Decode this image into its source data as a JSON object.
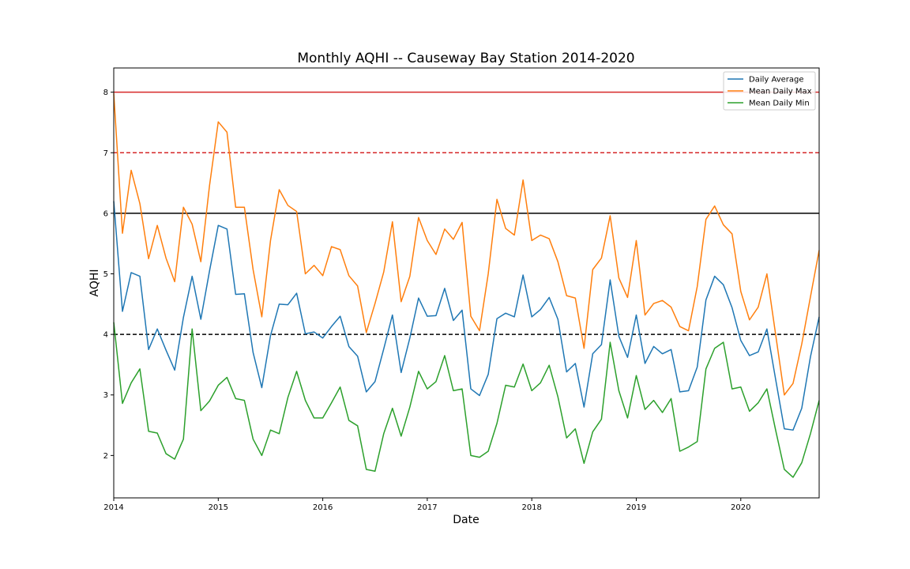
{
  "chart_data": {
    "type": "line",
    "title": "Monthly AQHI -- Causeway Bay Station 2014-2020",
    "xlabel": "Date",
    "ylabel": "AQHI",
    "x_start": "2014-01",
    "x_end": "2020-10",
    "xlim": [
      "2014-01",
      "2020-10"
    ],
    "ylim": [
      1.3,
      8.4
    ],
    "x_ticks": [
      "2014",
      "2015",
      "2016",
      "2017",
      "2018",
      "2019",
      "2020"
    ],
    "y_ticks": [
      2,
      3,
      4,
      5,
      6,
      7,
      8
    ],
    "grid": false,
    "legend_position": "upper right",
    "reference_lines": [
      {
        "y": 8,
        "style": "solid",
        "color": "#d62728"
      },
      {
        "y": 7,
        "style": "dashed",
        "color": "#d62728"
      },
      {
        "y": 6,
        "style": "solid",
        "color": "#000000"
      },
      {
        "y": 4,
        "style": "dashed",
        "color": "#000000"
      }
    ],
    "series": [
      {
        "name": "Daily Average",
        "color": "#1f77b4",
        "values": [
          6.2,
          4.38,
          5.02,
          4.96,
          3.75,
          4.09,
          3.74,
          3.41,
          4.28,
          4.96,
          4.25,
          5.05,
          5.8,
          5.74,
          4.66,
          4.67,
          3.7,
          3.12,
          3.98,
          4.5,
          4.49,
          4.68,
          4.01,
          4.04,
          3.94,
          4.13,
          4.3,
          3.8,
          3.64,
          3.05,
          3.22,
          3.76,
          4.32,
          3.37,
          3.94,
          4.6,
          4.3,
          4.31,
          4.76,
          4.23,
          4.4,
          3.1,
          2.99,
          3.34,
          4.26,
          4.35,
          4.29,
          4.98,
          4.29,
          4.41,
          4.61,
          4.25,
          3.38,
          3.52,
          2.8,
          3.68,
          3.83,
          4.9,
          3.97,
          3.62,
          4.32,
          3.52,
          3.8,
          3.68,
          3.75,
          3.05,
          3.07,
          3.46,
          4.57,
          4.96,
          4.82,
          4.44,
          3.9,
          3.65,
          3.71,
          4.09,
          3.26,
          2.44,
          2.42,
          2.78,
          3.63,
          4.29
        ]
      },
      {
        "name": "Mean Daily Max",
        "color": "#ff7f0e",
        "values": [
          7.98,
          5.67,
          6.71,
          6.16,
          5.25,
          5.8,
          5.26,
          4.87,
          6.1,
          5.82,
          5.2,
          6.46,
          7.51,
          7.34,
          6.1,
          6.1,
          5.07,
          4.29,
          5.55,
          6.39,
          6.13,
          6.03,
          5.0,
          5.14,
          4.97,
          5.45,
          5.4,
          4.97,
          4.8,
          4.03,
          4.51,
          5.03,
          5.86,
          4.54,
          4.96,
          5.93,
          5.55,
          5.32,
          5.74,
          5.57,
          5.85,
          4.3,
          4.06,
          5.0,
          6.23,
          5.75,
          5.64,
          6.55,
          5.55,
          5.64,
          5.58,
          5.2,
          4.64,
          4.6,
          3.77,
          5.07,
          5.26,
          5.96,
          4.93,
          4.61,
          5.55,
          4.32,
          4.51,
          4.56,
          4.45,
          4.13,
          4.06,
          4.79,
          5.9,
          6.12,
          5.81,
          5.66,
          4.71,
          4.24,
          4.45,
          5.0,
          4.0,
          3.0,
          3.19,
          3.84,
          4.62,
          5.39
        ]
      },
      {
        "name": "Mean Daily Min",
        "color": "#2ca02c",
        "values": [
          4.2,
          2.86,
          3.2,
          3.43,
          2.4,
          2.37,
          2.03,
          1.94,
          2.27,
          4.09,
          2.74,
          2.9,
          3.16,
          3.29,
          2.94,
          2.91,
          2.27,
          2.0,
          2.42,
          2.36,
          2.96,
          3.39,
          2.91,
          2.62,
          2.62,
          2.87,
          3.13,
          2.58,
          2.49,
          1.77,
          1.74,
          2.36,
          2.78,
          2.32,
          2.8,
          3.39,
          3.1,
          3.22,
          3.65,
          3.07,
          3.1,
          2.0,
          1.97,
          2.07,
          2.53,
          3.16,
          3.13,
          3.51,
          3.07,
          3.2,
          3.49,
          2.97,
          2.29,
          2.44,
          1.87,
          2.39,
          2.6,
          3.87,
          3.07,
          2.62,
          3.32,
          2.76,
          2.91,
          2.71,
          2.94,
          2.07,
          2.14,
          2.23,
          3.43,
          3.77,
          3.87,
          3.1,
          3.13,
          2.73,
          2.87,
          3.1,
          2.42,
          1.77,
          1.64,
          1.88,
          2.36,
          2.91
        ]
      }
    ]
  }
}
